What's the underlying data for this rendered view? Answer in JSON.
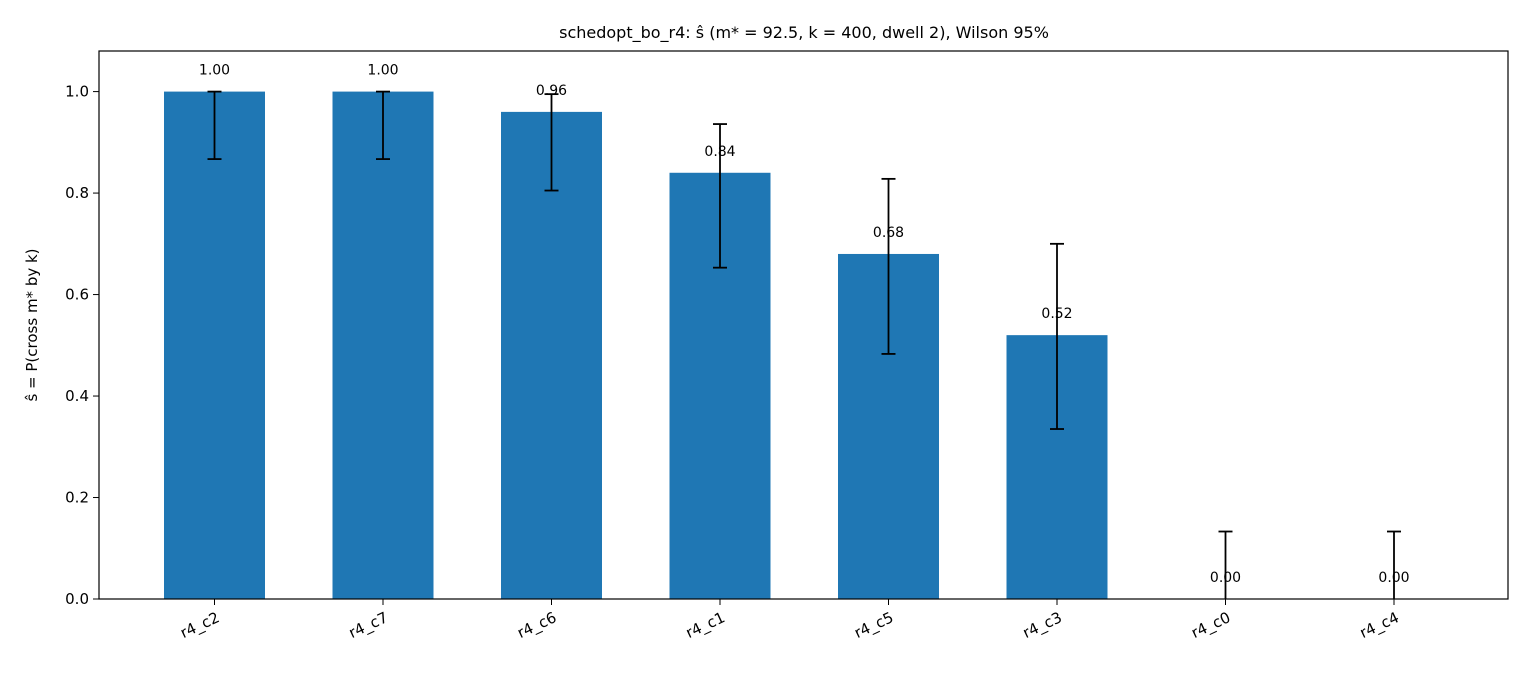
{
  "chart_data": {
    "type": "bar",
    "title": "schedopt_bo_r4: ŝ (m* = 92.5, k = 400, dwell 2), Wilson 95%",
    "xlabel": "",
    "ylabel": "ŝ = P(cross m* by k)",
    "categories": [
      "r4_c2",
      "r4_c7",
      "r4_c6",
      "r4_c1",
      "r4_c5",
      "r4_c3",
      "r4_c0",
      "r4_c4"
    ],
    "values": [
      1.0,
      1.0,
      0.96,
      0.84,
      0.68,
      0.52,
      0.0,
      0.0
    ],
    "value_labels": [
      "1.00",
      "1.00",
      "0.96",
      "0.84",
      "0.68",
      "0.52",
      "0.00",
      "0.00"
    ],
    "error_low": [
      0.867,
      0.867,
      0.805,
      0.653,
      0.483,
      0.335,
      0.0,
      0.0
    ],
    "error_high": [
      1.0,
      1.0,
      0.995,
      0.936,
      0.828,
      0.7,
      0.133,
      0.133
    ],
    "ylim": [
      0,
      1.08
    ],
    "yticks": [
      0.0,
      0.2,
      0.4,
      0.6,
      0.8,
      1.0
    ],
    "ytick_labels": [
      "0.0",
      "0.2",
      "0.4",
      "0.6",
      "0.8",
      "1.0"
    ],
    "grid": false,
    "bar_color": "#1f77b4",
    "error_color": "#000000"
  }
}
